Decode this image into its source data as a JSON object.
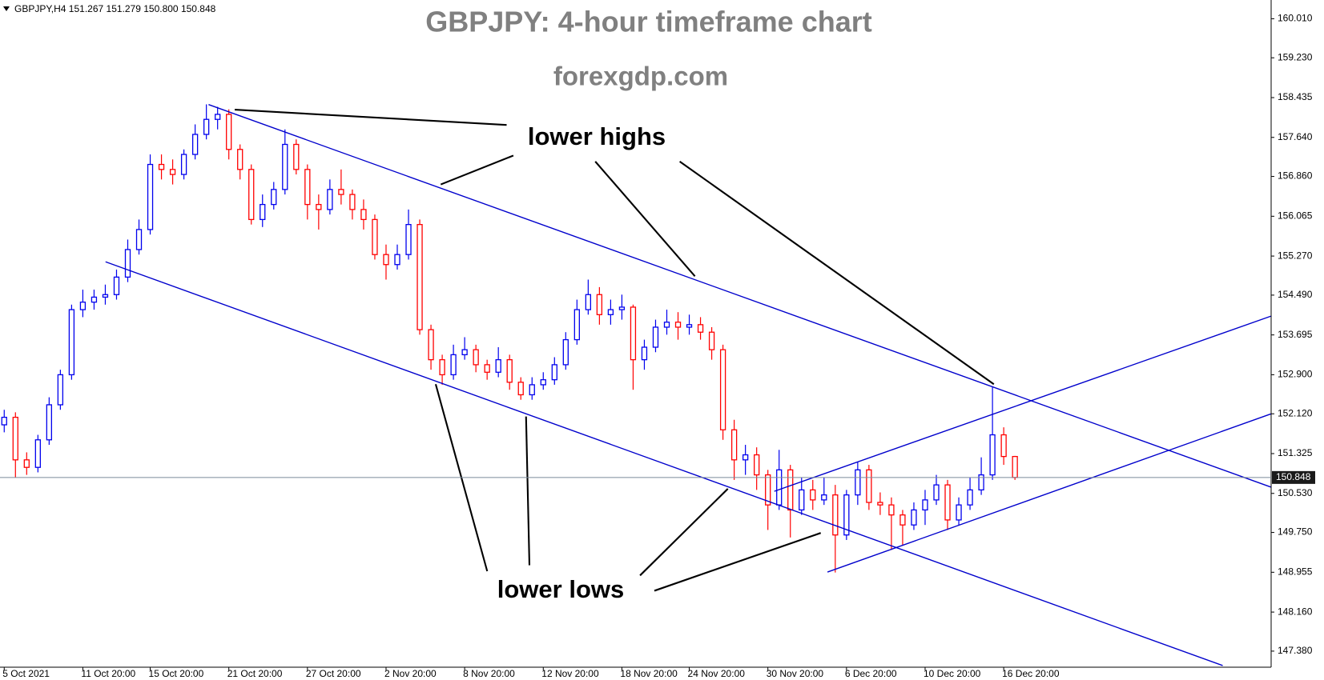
{
  "chart_data": {
    "type": "candlestick",
    "header": "GBPJPY,H4  151.267 151.279 150.800 150.848",
    "title": "GBPJPY: 4-hour timeframe chart",
    "subtitle": "forexgdp.com",
    "annotations": [
      "lower highs",
      "lower lows"
    ],
    "up_color": "#0000ee",
    "down_color": "#ff0000",
    "last_price": 150.848,
    "categories": [
      "5 Oct 2021",
      null,
      null,
      null,
      null,
      null,
      null,
      "11 Oct 20:00",
      null,
      null,
      null,
      null,
      null,
      "15 Oct 20:00",
      null,
      null,
      null,
      null,
      null,
      null,
      "21 Oct 20:00",
      null,
      null,
      null,
      null,
      null,
      null,
      "27 Oct 20:00",
      null,
      null,
      null,
      null,
      null,
      null,
      "2 Nov 20:00",
      null,
      null,
      null,
      null,
      null,
      null,
      "8 Nov 20:00",
      null,
      null,
      null,
      null,
      null,
      null,
      "12 Nov 20:00",
      null,
      null,
      null,
      null,
      null,
      null,
      "18 Nov 20:00",
      null,
      null,
      null,
      null,
      null,
      "24 Nov 20:00",
      null,
      null,
      null,
      null,
      null,
      null,
      "30 Nov 20:00",
      null,
      null,
      null,
      null,
      null,
      null,
      "6 Dec 20:00",
      null,
      null,
      null,
      null,
      null,
      null,
      "10 Dec 20:00",
      null,
      null,
      null,
      null,
      null,
      null,
      "16 Dec 20:00",
      null
    ],
    "open": [
      151.9,
      152.05,
      151.2,
      151.05,
      151.6,
      152.3,
      152.9,
      154.2,
      154.35,
      154.45,
      154.5,
      154.85,
      155.4,
      155.8,
      157.1,
      157.0,
      156.9,
      157.3,
      157.7,
      158.0,
      158.1,
      157.4,
      157.0,
      156.0,
      156.3,
      156.6,
      157.5,
      157.0,
      156.3,
      156.2,
      156.6,
      156.5,
      156.2,
      156.0,
      155.3,
      155.1,
      155.3,
      155.9,
      153.8,
      153.2,
      152.9,
      153.3,
      153.4,
      153.1,
      152.95,
      153.2,
      152.75,
      152.5,
      152.7,
      152.8,
      153.1,
      153.6,
      154.2,
      154.5,
      154.1,
      154.2,
      154.25,
      153.2,
      153.45,
      153.85,
      153.95,
      153.85,
      153.9,
      153.75,
      153.4,
      151.8,
      151.2,
      151.3,
      150.9,
      150.3,
      151.0,
      150.2,
      150.6,
      150.4,
      150.5,
      149.7,
      150.5,
      151.0,
      150.35,
      150.3,
      150.1,
      149.9,
      150.2,
      150.4,
      150.7,
      150.0,
      150.3,
      150.6,
      150.9,
      151.7,
      151.267
    ],
    "high": [
      152.2,
      152.15,
      151.35,
      151.7,
      152.45,
      153.0,
      154.3,
      154.6,
      154.6,
      154.7,
      155.0,
      155.6,
      156.0,
      157.3,
      157.3,
      157.2,
      157.4,
      157.9,
      158.3,
      158.25,
      158.2,
      157.5,
      157.1,
      156.5,
      156.75,
      157.8,
      157.6,
      157.1,
      156.5,
      156.8,
      157.0,
      156.6,
      156.4,
      156.1,
      155.5,
      155.5,
      156.2,
      156.0,
      153.9,
      153.3,
      153.5,
      153.65,
      153.5,
      153.2,
      153.45,
      153.3,
      152.85,
      152.85,
      152.95,
      153.25,
      153.75,
      154.4,
      154.8,
      154.65,
      154.4,
      154.5,
      154.3,
      153.6,
      154.0,
      154.2,
      154.15,
      154.1,
      154.05,
      153.85,
      153.5,
      152.0,
      151.5,
      151.45,
      151.0,
      151.4,
      151.1,
      150.85,
      150.8,
      150.85,
      150.7,
      150.6,
      151.15,
      151.1,
      150.55,
      150.45,
      150.2,
      150.35,
      150.6,
      150.9,
      150.8,
      150.45,
      150.85,
      151.25,
      152.65,
      151.85,
      151.279
    ],
    "low": [
      151.75,
      150.85,
      150.9,
      150.95,
      151.5,
      152.2,
      152.8,
      154.05,
      154.2,
      154.3,
      154.4,
      154.75,
      155.3,
      155.7,
      156.8,
      156.7,
      156.8,
      157.2,
      157.6,
      157.8,
      157.2,
      156.8,
      155.9,
      155.85,
      156.2,
      156.5,
      156.9,
      156.0,
      155.8,
      156.1,
      156.3,
      156.0,
      155.8,
      155.2,
      154.8,
      155.0,
      155.2,
      153.7,
      153.0,
      152.7,
      152.8,
      153.2,
      152.95,
      152.8,
      152.85,
      152.6,
      152.4,
      152.4,
      152.6,
      152.7,
      153.0,
      153.5,
      154.1,
      153.9,
      153.9,
      154.0,
      152.6,
      153.0,
      153.35,
      153.7,
      153.6,
      153.7,
      153.6,
      153.2,
      151.6,
      150.8,
      150.9,
      150.6,
      149.8,
      150.2,
      149.65,
      150.1,
      150.2,
      150.3,
      148.95,
      149.6,
      150.3,
      150.2,
      150.1,
      149.4,
      149.5,
      149.8,
      149.9,
      150.3,
      149.8,
      149.9,
      150.2,
      150.5,
      150.8,
      151.1,
      150.8
    ],
    "close": [
      152.05,
      151.2,
      151.05,
      151.6,
      152.3,
      152.9,
      154.2,
      154.35,
      154.45,
      154.5,
      154.85,
      155.4,
      155.8,
      157.1,
      157.0,
      156.9,
      157.3,
      157.7,
      158.0,
      158.1,
      157.4,
      157.0,
      156.0,
      156.3,
      156.6,
      157.5,
      157.0,
      156.3,
      156.2,
      156.6,
      156.5,
      156.2,
      156.0,
      155.3,
      155.1,
      155.3,
      155.9,
      153.8,
      153.2,
      152.9,
      153.3,
      153.4,
      153.1,
      152.95,
      153.2,
      152.75,
      152.5,
      152.7,
      152.8,
      153.1,
      153.6,
      154.2,
      154.5,
      154.1,
      154.2,
      154.25,
      153.2,
      153.45,
      153.85,
      153.95,
      153.85,
      153.9,
      153.75,
      153.4,
      151.8,
      151.2,
      151.3,
      150.9,
      150.3,
      151.0,
      150.2,
      150.6,
      150.4,
      150.5,
      149.7,
      150.5,
      151.0,
      150.35,
      150.3,
      150.1,
      149.9,
      150.2,
      150.4,
      150.7,
      150.0,
      150.3,
      150.6,
      150.9,
      151.7,
      151.267,
      150.848
    ],
    "ylim": [
      147.059,
      160.384
    ],
    "yticks": [
      {
        "value": 160.01,
        "label": "160.010"
      },
      {
        "value": 159.23,
        "label": "159.230"
      },
      158.435,
      {
        "value": 157.64,
        "label": "157.640"
      },
      {
        "value": 156.86,
        "label": "156.860"
      },
      156.065,
      {
        "value": 155.27,
        "label": "155.270"
      },
      {
        "value": 154.49,
        "label": "154.490"
      },
      153.695,
      {
        "value": 152.9,
        "label": "152.900"
      },
      {
        "value": 152.12,
        "label": "152.120"
      },
      151.325,
      {
        "value": 150.53,
        "label": "150.530"
      },
      {
        "value": 149.75,
        "label": "149.750"
      },
      148.955,
      {
        "value": 148.16,
        "label": "148.160"
      },
      {
        "value": 147.38,
        "label": "147.380"
      }
    ]
  }
}
